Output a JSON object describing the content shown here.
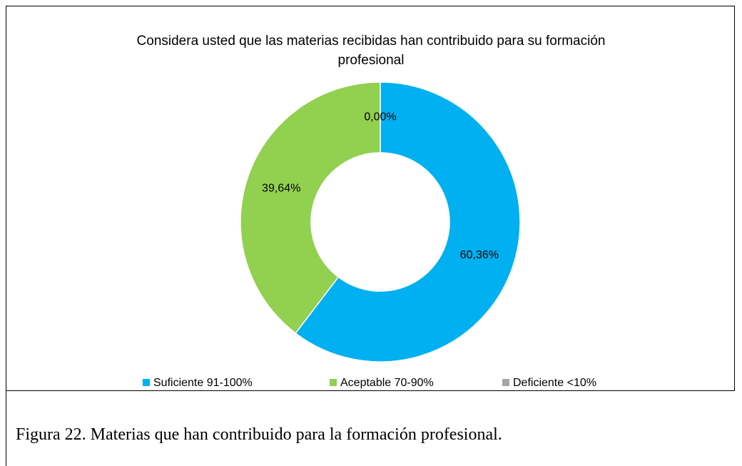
{
  "chart_data": {
    "type": "donut",
    "title": "Considera usted que las materias recibidas han contribuido para su formación profesional",
    "categories": [
      "Suficiente 91-100%",
      "Aceptable 70-90%",
      "Deficiente <10%"
    ],
    "values": [
      60.36,
      39.64,
      0.0
    ],
    "value_labels": [
      "60,36%",
      "39,64%",
      "0,00%"
    ],
    "colors": [
      "#00b0f0",
      "#92d050",
      "#a5a5a5"
    ],
    "legend": "bottom"
  },
  "caption": "Figura 22. Materias que han contribuido para la formación profesional."
}
